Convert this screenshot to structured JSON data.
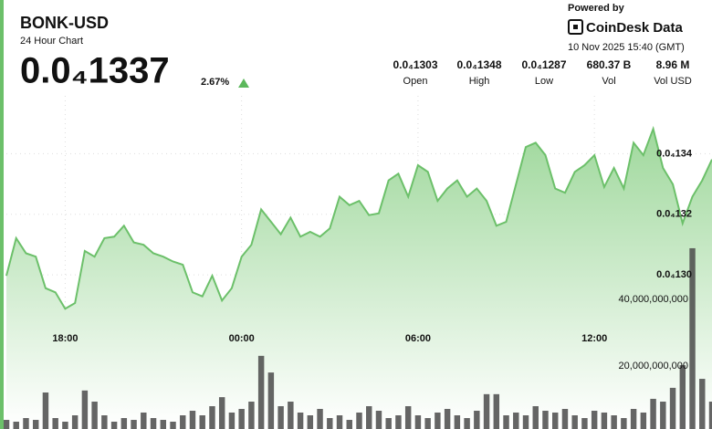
{
  "header": {
    "title": "BONK-USD",
    "subtitle": "24 Hour Chart",
    "price": "0.0₄1337",
    "change": "2.67%",
    "stats": [
      {
        "value": "0.0₄1303",
        "label": "Open"
      },
      {
        "value": "0.0₄1348",
        "label": "High"
      },
      {
        "value": "0.0₄1287",
        "label": "Low"
      },
      {
        "value": "680.37 B",
        "label": "Vol"
      },
      {
        "value": "8.96 M",
        "label": "Vol USD"
      }
    ]
  },
  "branding": {
    "powered_by": "Powered by",
    "brand": "CoinDesk Data",
    "timestamp": "10 Nov 2025 15:40 (GMT)"
  },
  "chart_data": [
    {
      "type": "line",
      "color": "#6cc06a",
      "grid": true,
      "categories": [
        "16:00",
        "16:20",
        "16:40",
        "17:00",
        "17:20",
        "17:40",
        "18:00",
        "18:20",
        "18:40",
        "19:00",
        "19:20",
        "19:40",
        "20:00",
        "20:20",
        "20:40",
        "21:00",
        "21:20",
        "21:40",
        "22:00",
        "22:20",
        "22:40",
        "23:00",
        "23:20",
        "23:40",
        "00:00",
        "00:20",
        "00:40",
        "01:00",
        "01:20",
        "01:40",
        "02:00",
        "02:20",
        "02:40",
        "03:00",
        "03:20",
        "03:40",
        "04:00",
        "04:20",
        "04:40",
        "05:00",
        "05:20",
        "05:40",
        "06:00",
        "06:20",
        "06:40",
        "07:00",
        "07:20",
        "07:40",
        "08:00",
        "08:20",
        "08:40",
        "09:00",
        "09:20",
        "09:40",
        "10:00",
        "10:20",
        "10:40",
        "11:00",
        "11:20",
        "11:40",
        "12:00",
        "12:20",
        "12:40",
        "13:00",
        "13:20",
        "13:40",
        "14:00",
        "14:20",
        "14:40",
        "15:00",
        "15:20",
        "15:40",
        "16:00"
      ],
      "values": [
        1.2997e-05,
        1.3121e-05,
        1.3071e-05,
        1.306e-05,
        1.2956e-05,
        1.2942e-05,
        1.2888e-05,
        1.2907e-05,
        1.3079e-05,
        1.306e-05,
        1.3121e-05,
        1.3126e-05,
        1.3162e-05,
        1.3107e-05,
        1.3099e-05,
        1.3071e-05,
        1.306e-05,
        1.3044e-05,
        1.3033e-05,
        1.2942e-05,
        1.2929e-05,
        1.2997e-05,
        1.2915e-05,
        1.2956e-05,
        1.306e-05,
        1.3099e-05,
        1.3216e-05,
        1.3175e-05,
        1.3134e-05,
        1.3189e-05,
        1.3126e-05,
        1.3142e-05,
        1.3126e-05,
        1.3153e-05,
        1.3258e-05,
        1.323e-05,
        1.3244e-05,
        1.3197e-05,
        1.3203e-05,
        1.3312e-05,
        1.3334e-05,
        1.3258e-05,
        1.3362e-05,
        1.334e-05,
        1.3244e-05,
        1.3285e-05,
        1.3312e-05,
        1.3258e-05,
        1.3285e-05,
        1.3244e-05,
        1.3162e-05,
        1.3175e-05,
        1.3299e-05,
        1.3422e-05,
        1.3436e-05,
        1.3395e-05,
        1.3285e-05,
        1.3271e-05,
        1.334e-05,
        1.3362e-05,
        1.3395e-05,
        1.329e-05,
        1.3353e-05,
        1.3285e-05,
        1.3436e-05,
        1.3395e-05,
        1.3482e-05,
        1.3353e-05,
        1.3299e-05,
        1.317e-05,
        1.3258e-05,
        1.3312e-05,
        1.3381e-05
      ],
      "xticks": [
        "18:00",
        "00:00",
        "06:00",
        "12:00"
      ],
      "ylim": [
        1.25e-05,
        1.36e-05
      ],
      "yticks": [
        {
          "value": 1.3e-05,
          "label": "0.0₄130"
        },
        {
          "value": 1.32e-05,
          "label": "0.0₄132"
        },
        {
          "value": 1.34e-05,
          "label": "0.0₄134"
        }
      ]
    },
    {
      "type": "bar",
      "color": "#4a4a4a",
      "values": [
        4380000000,
        3840000000,
        4930000000,
        4380000000,
        12600000000,
        4930000000,
        3840000000,
        5750000000,
        13200000000,
        9860000000,
        5750000000,
        3840000000,
        4930000000,
        4380000000,
        6580000000,
        4930000000,
        4380000000,
        3840000000,
        5750000000,
        7120000000,
        5750000000,
        8490000000,
        11200000000,
        6580000000,
        7670000000,
        9860000000,
        23600000000,
        18600000000,
        8490000000,
        9860000000,
        6580000000,
        5750000000,
        7670000000,
        4930000000,
        5750000000,
        4380000000,
        6580000000,
        8490000000,
        7120000000,
        4930000000,
        5750000000,
        8490000000,
        5750000000,
        4930000000,
        6580000000,
        7670000000,
        5750000000,
        4930000000,
        7120000000,
        12100000000,
        12100000000,
        5750000000,
        6580000000,
        5750000000,
        8490000000,
        7120000000,
        6580000000,
        7670000000,
        5750000000,
        4930000000,
        7120000000,
        6580000000,
        5750000000,
        4930000000,
        7670000000,
        6580000000,
        10700000000,
        9860000000,
        14000000000,
        20800000000,
        55900000000,
        16700000000,
        9860000000
      ],
      "ylim": [
        0,
        60000000000
      ],
      "yticks": [
        {
          "value": 20000000000,
          "label": "20,000,000,000"
        },
        {
          "value": 40000000000,
          "label": "40,000,000,000"
        }
      ]
    }
  ]
}
